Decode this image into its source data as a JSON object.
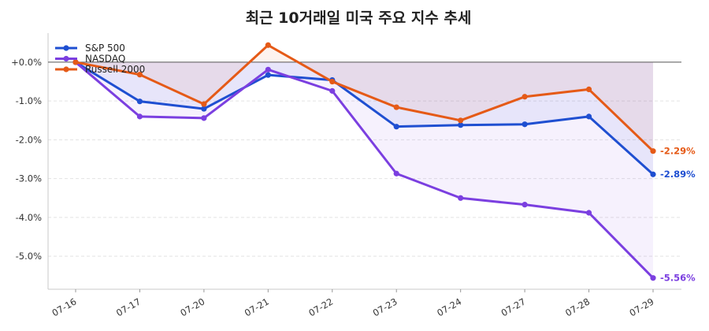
{
  "chart_data": {
    "type": "line",
    "title": "최근 10거래일 미국 주요 지수 추세",
    "xlabel": "",
    "ylabel": "",
    "categories": [
      "07-16",
      "07-17",
      "07-20",
      "07-21",
      "07-22",
      "07-23",
      "07-24",
      "07-27",
      "07-28",
      "07-29"
    ],
    "ylim": [
      -5.85,
      0.75
    ],
    "yticks": [
      0.0,
      -1.0,
      -2.0,
      -3.0,
      -4.0,
      -5.0
    ],
    "ytick_labels": [
      "+0.0%",
      "-1.0%",
      "-2.0%",
      "-3.0%",
      "-4.0%",
      "-5.0%"
    ],
    "grid": true,
    "legend_position": "top-left",
    "series": [
      {
        "name": "S&P 500",
        "color": "#1f4fd1",
        "end_label": "-2.89%",
        "values": [
          0.0,
          -1.01,
          -1.2,
          -0.33,
          -0.46,
          -1.66,
          -1.62,
          -1.6,
          -1.4,
          -2.89
        ]
      },
      {
        "name": "NASDAQ",
        "color": "#7b3fe0",
        "end_label": "-5.56%",
        "values": [
          0.0,
          -1.4,
          -1.44,
          -0.19,
          -0.74,
          -2.87,
          -3.5,
          -3.67,
          -3.88,
          -5.56
        ]
      },
      {
        "name": "Russell 2000",
        "color": "#e55a17",
        "end_label": "-2.29%",
        "values": [
          0.0,
          -0.32,
          -1.08,
          0.44,
          -0.5,
          -1.16,
          -1.5,
          -0.89,
          -0.7,
          -2.29
        ]
      }
    ]
  }
}
